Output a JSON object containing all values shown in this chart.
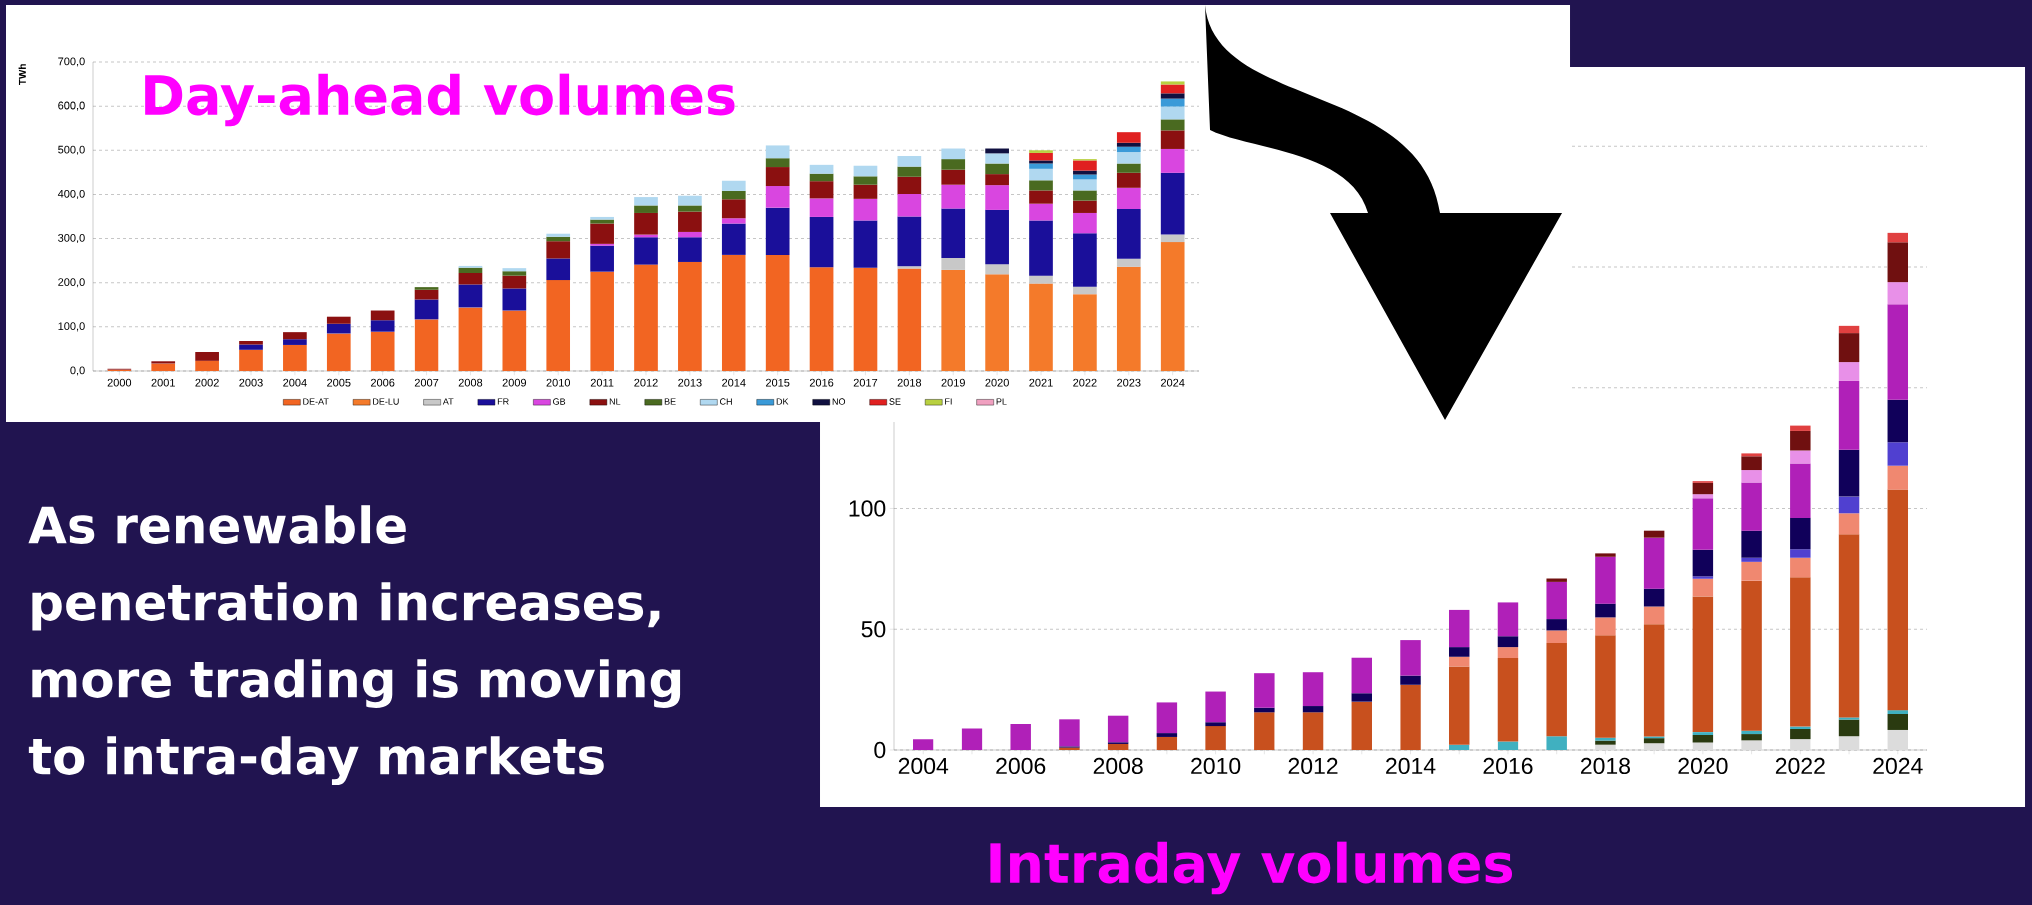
{
  "chart_data": [
    {
      "type": "bar",
      "title": "Day-ahead volumes",
      "ylabel": "TWh",
      "stacked": true,
      "grid": "y",
      "legend": "bottom",
      "ylim": [
        0,
        700
      ],
      "yticks": [
        {
          "value": 0,
          "label": "0,0"
        },
        {
          "value": 100,
          "label": "100,0"
        },
        {
          "value": 200,
          "label": "200,0"
        },
        {
          "value": 300,
          "label": "300,0"
        },
        {
          "value": 400,
          "label": "400,0"
        },
        {
          "value": 500,
          "label": "500,0"
        },
        {
          "value": 600,
          "label": "600,0"
        },
        {
          "value": 700,
          "label": "700,0"
        }
      ],
      "categories": [
        "2000",
        "2001",
        "2002",
        "2003",
        "2004",
        "2005",
        "2006",
        "2007",
        "2008",
        "2009",
        "2010",
        "2011",
        "2012",
        "2013",
        "2014",
        "2015",
        "2016",
        "2017",
        "2018",
        "2019",
        "2020",
        "2021",
        "2022",
        "2023",
        "2024"
      ],
      "series": [
        {
          "name": "DE-AT",
          "color": "#f26522",
          "values": [
            3,
            17,
            23,
            48,
            59,
            85,
            89,
            117,
            144,
            137,
            206,
            225,
            241,
            247,
            263,
            263,
            235,
            234,
            232,
            null,
            null,
            null,
            null,
            null,
            null
          ]
        },
        {
          "name": "DE-LU",
          "color": "#f47a2a",
          "values": [
            null,
            null,
            null,
            null,
            null,
            null,
            null,
            null,
            null,
            null,
            null,
            null,
            null,
            null,
            null,
            null,
            null,
            null,
            null,
            229,
            219,
            198,
            174,
            236,
            292
          ]
        },
        {
          "name": "AT",
          "color": "#c8c8c8",
          "values": [
            null,
            null,
            null,
            null,
            null,
            null,
            null,
            null,
            null,
            null,
            null,
            null,
            null,
            null,
            null,
            null,
            null,
            null,
            5,
            27,
            23,
            18,
            17,
            18,
            17
          ]
        },
        {
          "name": "FR",
          "color": "#1a0f9a",
          "values": [
            null,
            null,
            null,
            12,
            13,
            22,
            26,
            45,
            52,
            50,
            49,
            59,
            62,
            56,
            71,
            107,
            114,
            107,
            113,
            112,
            123,
            125,
            121,
            113,
            140
          ]
        },
        {
          "name": "GB",
          "color": "#d946e0",
          "values": [
            null,
            null,
            null,
            null,
            null,
            null,
            null,
            null,
            null,
            null,
            null,
            4,
            6,
            12,
            12,
            49,
            42,
            49,
            51,
            54,
            56,
            38,
            46,
            48,
            54
          ]
        },
        {
          "name": "NL",
          "color": "#8b1010",
          "values": [
            2,
            5,
            20,
            8,
            16,
            16,
            22,
            22,
            26,
            29,
            39,
            46,
            49,
            46,
            43,
            43,
            39,
            32,
            39,
            34,
            25,
            30,
            28,
            34,
            42
          ]
        },
        {
          "name": "BE",
          "color": "#4a6a20",
          "values": [
            null,
            null,
            null,
            null,
            null,
            null,
            null,
            6,
            12,
            10,
            10,
            9,
            17,
            14,
            19,
            20,
            17,
            19,
            23,
            24,
            24,
            23,
            23,
            21,
            25
          ]
        },
        {
          "name": "CH",
          "color": "#b0d8f0",
          "values": [
            null,
            null,
            null,
            null,
            null,
            null,
            null,
            null,
            4,
            7,
            7,
            6,
            19,
            22,
            23,
            29,
            20,
            24,
            24,
            24,
            23,
            26,
            25,
            26,
            29
          ]
        },
        {
          "name": "DK",
          "color": "#3a9ad8",
          "values": [
            null,
            null,
            null,
            null,
            null,
            null,
            null,
            null,
            null,
            null,
            null,
            null,
            null,
            null,
            null,
            null,
            null,
            null,
            null,
            null,
            null,
            12,
            11,
            12,
            18
          ]
        },
        {
          "name": "NO",
          "color": "#101040",
          "values": [
            null,
            null,
            null,
            null,
            null,
            null,
            null,
            null,
            null,
            null,
            null,
            null,
            null,
            null,
            null,
            null,
            null,
            null,
            null,
            null,
            11,
            7,
            9,
            9,
            12
          ]
        },
        {
          "name": "SE",
          "color": "#e02020",
          "values": [
            null,
            null,
            null,
            null,
            null,
            null,
            null,
            null,
            null,
            null,
            null,
            null,
            null,
            null,
            null,
            null,
            null,
            null,
            null,
            null,
            null,
            17,
            23,
            24,
            20
          ]
        },
        {
          "name": "FI",
          "color": "#b8d040",
          "values": [
            null,
            null,
            null,
            null,
            null,
            null,
            null,
            null,
            null,
            null,
            null,
            null,
            null,
            null,
            null,
            null,
            null,
            null,
            null,
            null,
            null,
            6,
            3,
            null,
            7
          ]
        },
        {
          "name": "PL",
          "color": "#f0a0c0",
          "values": [
            null,
            null,
            null,
            null,
            null,
            null,
            null,
            null,
            null,
            null,
            null,
            null,
            null,
            null,
            null,
            null,
            null,
            null,
            null,
            null,
            null,
            null,
            null,
            null,
            null
          ]
        }
      ]
    },
    {
      "type": "bar",
      "title": "Intraday volumes",
      "stacked": true,
      "grid": "y",
      "ylim": [
        0,
        260
      ],
      "yticks": [
        0,
        50,
        100,
        {
          "value": 150,
          "label": null
        },
        {
          "value": 200,
          "label": null
        },
        {
          "value": 250,
          "label": null
        }
      ],
      "categories": [
        "2004",
        null,
        "2006",
        null,
        "2008",
        null,
        "2010",
        null,
        "2012",
        null,
        "2014",
        null,
        "2016",
        null,
        "2018",
        null,
        "2020",
        null,
        "2022",
        null,
        "2024"
      ],
      "series": [
        {
          "color": "#dcdcdc",
          "values": [
            null,
            null,
            null,
            null,
            null,
            null,
            null,
            null,
            null,
            null,
            null,
            null,
            null,
            null,
            2.2,
            2.8,
            3.1,
            4,
            4.5,
            5.7,
            8.3
          ]
        },
        {
          "color": "#2a3a10",
          "values": [
            null,
            null,
            null,
            null,
            null,
            null,
            null,
            null,
            null,
            null,
            null,
            null,
            null,
            null,
            1.7,
            2.1,
            3.1,
            2.6,
            4.2,
            6.9,
            6.6
          ]
        },
        {
          "color": "#40b0c0",
          "values": [
            null,
            null,
            null,
            null,
            null,
            null,
            null,
            null,
            null,
            null,
            null,
            2.2,
            3.5,
            5.7,
            1.2,
            0.7,
            1.2,
            1.4,
            1,
            0.9,
            1.6
          ]
        },
        {
          "color": "#c8501e",
          "values": [
            null,
            null,
            null,
            1,
            2.5,
            5.4,
            9.9,
            15.6,
            15.6,
            20,
            27,
            32.4,
            34.6,
            38.6,
            42.4,
            46.5,
            56.2,
            62.1,
            61.8,
            75.8,
            91.3
          ]
        },
        {
          "color": "#f08870",
          "values": [
            null,
            null,
            null,
            null,
            null,
            null,
            null,
            null,
            null,
            null,
            null,
            4,
            4.5,
            5.2,
            7.4,
            7.3,
            7.3,
            7.8,
            8.1,
            8.7,
            9.9
          ]
        },
        {
          "color": "#5040d0",
          "values": [
            null,
            null,
            null,
            null,
            null,
            null,
            null,
            null,
            null,
            null,
            null,
            null,
            null,
            null,
            null,
            null,
            1,
            1.7,
            3.5,
            6.9,
            9.7
          ]
        },
        {
          "color": "#10005a",
          "values": [
            null,
            null,
            null,
            0.5,
            0.7,
            1.6,
            1.6,
            1.9,
            2.6,
            3.5,
            3.8,
            4,
            4.5,
            4.7,
            5.7,
            7.4,
            11,
            11.2,
            13,
            19.4,
            17.6
          ]
        },
        {
          "color": "#b020b8",
          "values": [
            4.5,
            8.9,
            10.8,
            11.2,
            11,
            12.7,
            12.7,
            14.3,
            14,
            14.7,
            14.7,
            15.4,
            14,
            15.4,
            19.4,
            21.1,
            21.3,
            19.9,
            22.5,
            28.5,
            39.5
          ]
        },
        {
          "color": "#e890e8",
          "values": [
            null,
            null,
            null,
            null,
            null,
            null,
            null,
            null,
            null,
            null,
            null,
            null,
            null,
            null,
            null,
            null,
            1.7,
            5.2,
            5.4,
            7.8,
            9.2
          ]
        },
        {
          "color": "#701010",
          "values": [
            null,
            null,
            null,
            null,
            null,
            null,
            null,
            null,
            null,
            null,
            null,
            null,
            null,
            1.4,
            1.4,
            2.9,
            4.7,
            5.7,
            8.1,
            12,
            16.5
          ]
        },
        {
          "color": "#e04040",
          "values": [
            null,
            null,
            null,
            null,
            null,
            null,
            null,
            null,
            null,
            null,
            null,
            null,
            null,
            null,
            null,
            null,
            0.7,
            1.2,
            2.2,
            3,
            3.9
          ]
        }
      ]
    },
    {
      "type": "other",
      "annotations": [
        "As renewable penetration increases, more trading is moving to intra-day markets"
      ]
    }
  ]
}
